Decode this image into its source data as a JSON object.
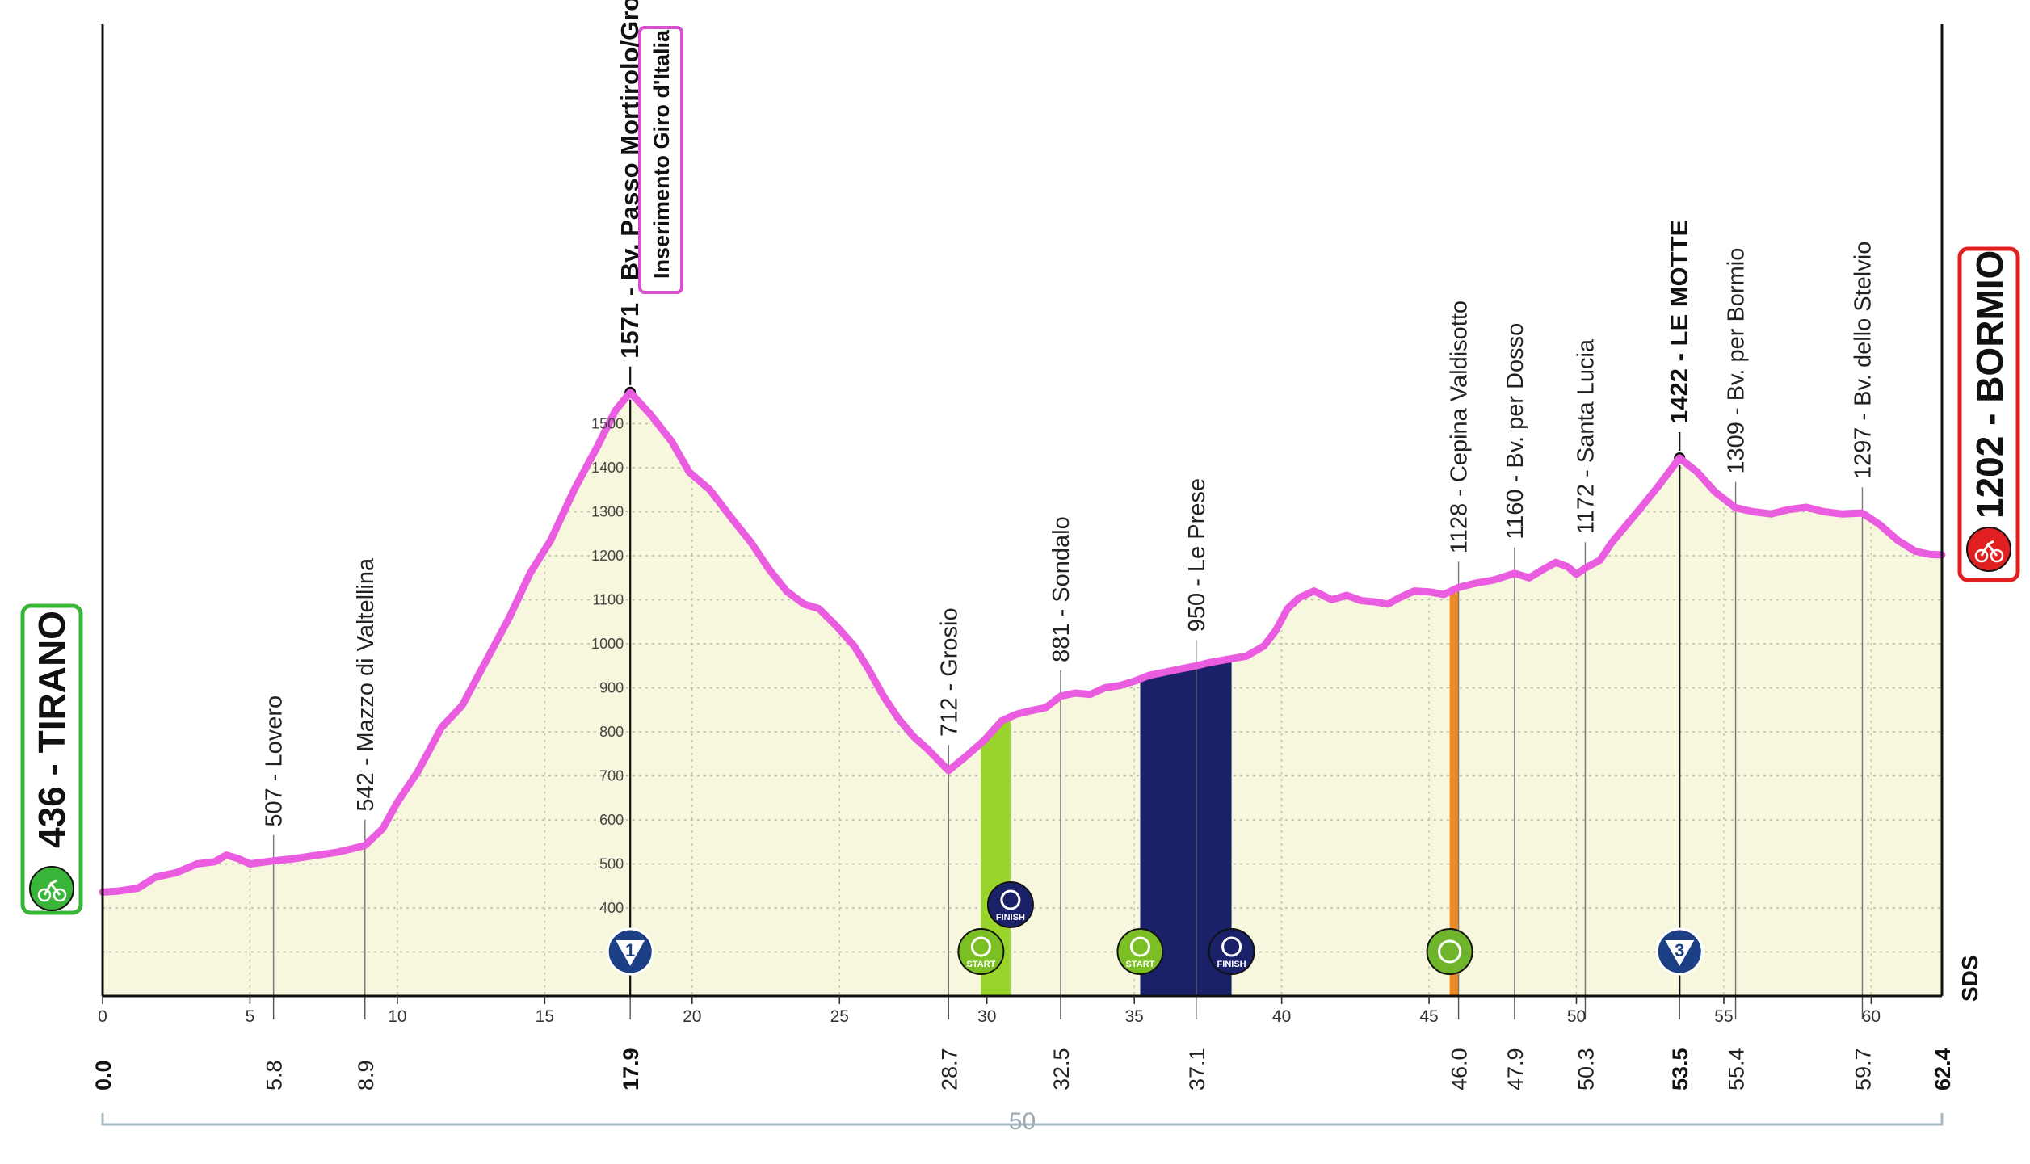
{
  "chart_data": {
    "type": "area",
    "title": "",
    "xlabel": "",
    "ylabel": "",
    "xlim": [
      0,
      62.4
    ],
    "ylim": [
      200,
      1571
    ],
    "x_ticks": [
      0,
      5,
      10,
      15,
      20,
      25,
      30,
      35,
      40,
      45,
      50,
      55,
      60
    ],
    "y_ticks": [
      400,
      500,
      600,
      700,
      800,
      900,
      1000,
      1100,
      1200,
      1300,
      1400,
      1500
    ],
    "grid": true,
    "line_color": "#ea5ce0",
    "fill_color": "#f6f7dc",
    "profile": [
      {
        "x": 0.0,
        "y": 436
      },
      {
        "x": 0.5,
        "y": 438
      },
      {
        "x": 1.2,
        "y": 445
      },
      {
        "x": 1.8,
        "y": 470
      },
      {
        "x": 2.5,
        "y": 480
      },
      {
        "x": 3.2,
        "y": 500
      },
      {
        "x": 3.8,
        "y": 505
      },
      {
        "x": 4.2,
        "y": 520
      },
      {
        "x": 4.6,
        "y": 512
      },
      {
        "x": 5.0,
        "y": 500
      },
      {
        "x": 5.8,
        "y": 507
      },
      {
        "x": 6.5,
        "y": 512
      },
      {
        "x": 7.3,
        "y": 520
      },
      {
        "x": 8.0,
        "y": 527
      },
      {
        "x": 8.5,
        "y": 535
      },
      {
        "x": 8.9,
        "y": 542
      },
      {
        "x": 9.5,
        "y": 580
      },
      {
        "x": 10.0,
        "y": 640
      },
      {
        "x": 10.7,
        "y": 710
      },
      {
        "x": 11.5,
        "y": 810
      },
      {
        "x": 12.2,
        "y": 860
      },
      {
        "x": 13.0,
        "y": 960
      },
      {
        "x": 13.8,
        "y": 1060
      },
      {
        "x": 14.5,
        "y": 1160
      },
      {
        "x": 15.2,
        "y": 1235
      },
      {
        "x": 16.0,
        "y": 1350
      },
      {
        "x": 16.8,
        "y": 1450
      },
      {
        "x": 17.4,
        "y": 1530
      },
      {
        "x": 17.9,
        "y": 1571
      },
      {
        "x": 18.6,
        "y": 1520
      },
      {
        "x": 19.3,
        "y": 1460
      },
      {
        "x": 19.9,
        "y": 1390
      },
      {
        "x": 20.6,
        "y": 1350
      },
      {
        "x": 21.4,
        "y": 1280
      },
      {
        "x": 22.0,
        "y": 1230
      },
      {
        "x": 22.6,
        "y": 1170
      },
      {
        "x": 23.2,
        "y": 1120
      },
      {
        "x": 23.8,
        "y": 1090
      },
      {
        "x": 24.3,
        "y": 1080
      },
      {
        "x": 24.9,
        "y": 1040
      },
      {
        "x": 25.5,
        "y": 995
      },
      {
        "x": 26.0,
        "y": 940
      },
      {
        "x": 26.5,
        "y": 880
      },
      {
        "x": 27.0,
        "y": 830
      },
      {
        "x": 27.5,
        "y": 790
      },
      {
        "x": 28.0,
        "y": 760
      },
      {
        "x": 28.7,
        "y": 712
      },
      {
        "x": 29.3,
        "y": 745
      },
      {
        "x": 29.9,
        "y": 780
      },
      {
        "x": 30.5,
        "y": 825
      },
      {
        "x": 31.0,
        "y": 840
      },
      {
        "x": 31.5,
        "y": 848
      },
      {
        "x": 32.0,
        "y": 855
      },
      {
        "x": 32.5,
        "y": 881
      },
      {
        "x": 33.0,
        "y": 888
      },
      {
        "x": 33.5,
        "y": 885
      },
      {
        "x": 34.0,
        "y": 900
      },
      {
        "x": 34.5,
        "y": 905
      },
      {
        "x": 35.0,
        "y": 915
      },
      {
        "x": 35.5,
        "y": 928
      },
      {
        "x": 36.0,
        "y": 935
      },
      {
        "x": 36.5,
        "y": 942
      },
      {
        "x": 37.1,
        "y": 950
      },
      {
        "x": 37.6,
        "y": 958
      },
      {
        "x": 38.2,
        "y": 965
      },
      {
        "x": 38.8,
        "y": 972
      },
      {
        "x": 39.4,
        "y": 995
      },
      {
        "x": 39.8,
        "y": 1030
      },
      {
        "x": 40.2,
        "y": 1080
      },
      {
        "x": 40.6,
        "y": 1105
      },
      {
        "x": 41.1,
        "y": 1120
      },
      {
        "x": 41.7,
        "y": 1100
      },
      {
        "x": 42.2,
        "y": 1110
      },
      {
        "x": 42.7,
        "y": 1098
      },
      {
        "x": 43.2,
        "y": 1095
      },
      {
        "x": 43.6,
        "y": 1090
      },
      {
        "x": 44.0,
        "y": 1105
      },
      {
        "x": 44.5,
        "y": 1120
      },
      {
        "x": 45.0,
        "y": 1118
      },
      {
        "x": 45.5,
        "y": 1112
      },
      {
        "x": 46.0,
        "y": 1128
      },
      {
        "x": 46.6,
        "y": 1138
      },
      {
        "x": 47.2,
        "y": 1145
      },
      {
        "x": 47.9,
        "y": 1160
      },
      {
        "x": 48.4,
        "y": 1150
      },
      {
        "x": 48.9,
        "y": 1170
      },
      {
        "x": 49.3,
        "y": 1185
      },
      {
        "x": 49.7,
        "y": 1175
      },
      {
        "x": 50.0,
        "y": 1158
      },
      {
        "x": 50.3,
        "y": 1172
      },
      {
        "x": 50.8,
        "y": 1190
      },
      {
        "x": 51.2,
        "y": 1230
      },
      {
        "x": 51.7,
        "y": 1270
      },
      {
        "x": 52.2,
        "y": 1310
      },
      {
        "x": 52.8,
        "y": 1360
      },
      {
        "x": 53.5,
        "y": 1422
      },
      {
        "x": 54.1,
        "y": 1390
      },
      {
        "x": 54.7,
        "y": 1345
      },
      {
        "x": 55.4,
        "y": 1309
      },
      {
        "x": 56.0,
        "y": 1300
      },
      {
        "x": 56.6,
        "y": 1295
      },
      {
        "x": 57.2,
        "y": 1305
      },
      {
        "x": 57.8,
        "y": 1310
      },
      {
        "x": 58.4,
        "y": 1300
      },
      {
        "x": 59.0,
        "y": 1295
      },
      {
        "x": 59.7,
        "y": 1297
      },
      {
        "x": 60.3,
        "y": 1270
      },
      {
        "x": 60.9,
        "y": 1235
      },
      {
        "x": 61.5,
        "y": 1210
      },
      {
        "x": 62.0,
        "y": 1203
      },
      {
        "x": 62.4,
        "y": 1202
      }
    ],
    "waypoints": [
      {
        "km": 5.8,
        "km_label": "5.8",
        "label": "507 - Lovero",
        "major": false,
        "alt": 507
      },
      {
        "km": 8.9,
        "km_label": "8.9",
        "label": "542 - Mazzo di Valtellina",
        "major": false,
        "alt": 542
      },
      {
        "km": 17.9,
        "km_label": "17.9",
        "label": "1571 - Bv. Passo Mortirolo/Grosio",
        "major": true,
        "alt": 1571
      },
      {
        "km": 28.7,
        "km_label": "28.7",
        "label": "712 - Grosio",
        "major": false,
        "alt": 712
      },
      {
        "km": 32.5,
        "km_label": "32.5",
        "label": "881 - Sondalo",
        "major": false,
        "alt": 881
      },
      {
        "km": 37.1,
        "km_label": "37.1",
        "label": "950 - Le Prese",
        "major": false,
        "alt": 950
      },
      {
        "km": 46.0,
        "km_label": "46.0",
        "label": "1128 - Cepina Valdisotto",
        "major": false,
        "alt": 1128
      },
      {
        "km": 47.9,
        "km_label": "47.9",
        "label": "1160 - Bv. per Dosso",
        "major": false,
        "alt": 1160
      },
      {
        "km": 50.3,
        "km_label": "50.3",
        "label": "1172 - Santa Lucia",
        "major": false,
        "alt": 1172
      },
      {
        "km": 53.5,
        "km_label": "53.5",
        "label": "1422 - LE MOTTE",
        "major": true,
        "alt": 1422
      },
      {
        "km": 55.4,
        "km_label": "55.4",
        "label": "1309 - Bv. per Bormio",
        "major": false,
        "alt": 1309
      },
      {
        "km": 59.7,
        "km_label": "59.7",
        "label": "1297 - Bv. dello Stelvio",
        "major": false,
        "alt": 1297
      }
    ],
    "endpoints": {
      "start": {
        "km_label": "0.0",
        "label": "436 - TIRANO",
        "color": "#39b63a"
      },
      "finish": {
        "km_label": "62.4",
        "label": "1202 - BORMIO",
        "color": "#e02020"
      }
    },
    "annotation": "Inserimento Giro d'Italia",
    "annotation_color": "#d84fcf",
    "segments": [
      {
        "name": "green-sector",
        "from": 29.8,
        "to": 30.8,
        "color": "#99d42a",
        "badges": [
          "START",
          "FINISH"
        ]
      },
      {
        "name": "blue-sector",
        "from": 35.2,
        "to": 38.3,
        "color": "#1a2168",
        "badges": [
          "START",
          "FINISH"
        ]
      },
      {
        "name": "orange-marker",
        "from": 45.7,
        "to": 46.0,
        "color": "#f08a24",
        "badges": []
      }
    ],
    "kom_markers": [
      {
        "km": 17.9,
        "label": "1",
        "color": "#2f7fd0"
      },
      {
        "km": 53.5,
        "label": "3",
        "color": "#2f7fd0"
      }
    ],
    "bracket_label": "50",
    "corner_label": "SDS"
  }
}
